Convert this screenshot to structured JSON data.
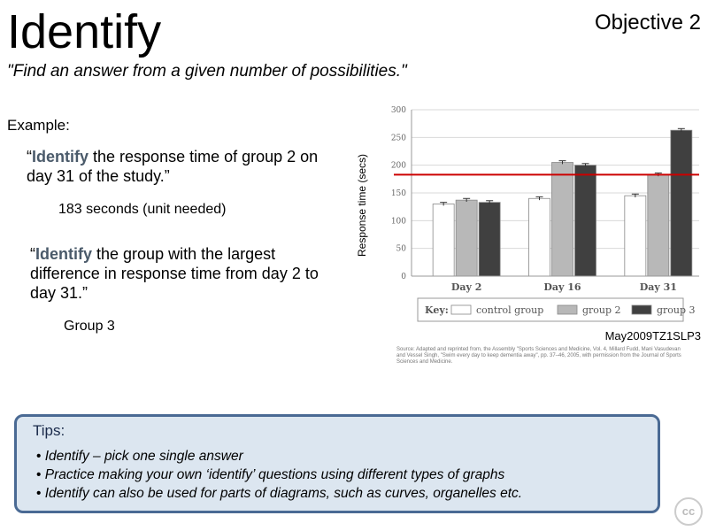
{
  "title": "Identify",
  "objective": "Objective 2",
  "definition": "\"Find an answer from a given number of possibilities.\"",
  "example_label": "Example:",
  "question1": {
    "prefix": "“",
    "keyword": "Identify",
    "rest": " the response time of group 2 on day 31 of the study.”"
  },
  "answer1": "183 seconds (unit needed)",
  "question2": {
    "prefix": "“",
    "keyword": "Identify",
    "rest": " the group with the largest difference in response time from day 2 to day 31.”"
  },
  "answer2": "Group 3",
  "source_tag": "May2009TZ1SLP3",
  "source_text": "Source: Adapted and reprinted from, the Assembly \"Sports Sciences and Medicine, Vol. 4, Millard Fudd, Mani Vasudevan and Vessel Singh, \"Swim every day to keep dementia away\", pp. 37–46, 2005, with permission from the Journal of Sports Sciences and Medicine.",
  "tips": {
    "title": "Tips:",
    "items": [
      "Identify – pick one single answer",
      "Practice making your own ‘identify’ questions using different types of graphs",
      "Identify can also be used for parts of diagrams, such as curves, organelles etc."
    ]
  },
  "cc_icon": "cc",
  "chart_data": {
    "type": "bar",
    "ylabel": "Response time (secs)",
    "ylim": [
      0,
      300
    ],
    "yticks": [
      0,
      50,
      100,
      150,
      200,
      250,
      300
    ],
    "categories": [
      "Day 2",
      "Day 16",
      "Day 31"
    ],
    "series": [
      {
        "name": "control group",
        "color": "#ffffff",
        "values": [
          130,
          140,
          145
        ]
      },
      {
        "name": "group 2",
        "color": "#b8b8b8",
        "values": [
          137,
          205,
          183
        ]
      },
      {
        "name": "group 3",
        "color": "#404040",
        "values": [
          133,
          200,
          263
        ]
      }
    ],
    "legend_title": "Key:",
    "reference_line": {
      "value": 183,
      "color": "#cc0000"
    },
    "grid": true
  }
}
